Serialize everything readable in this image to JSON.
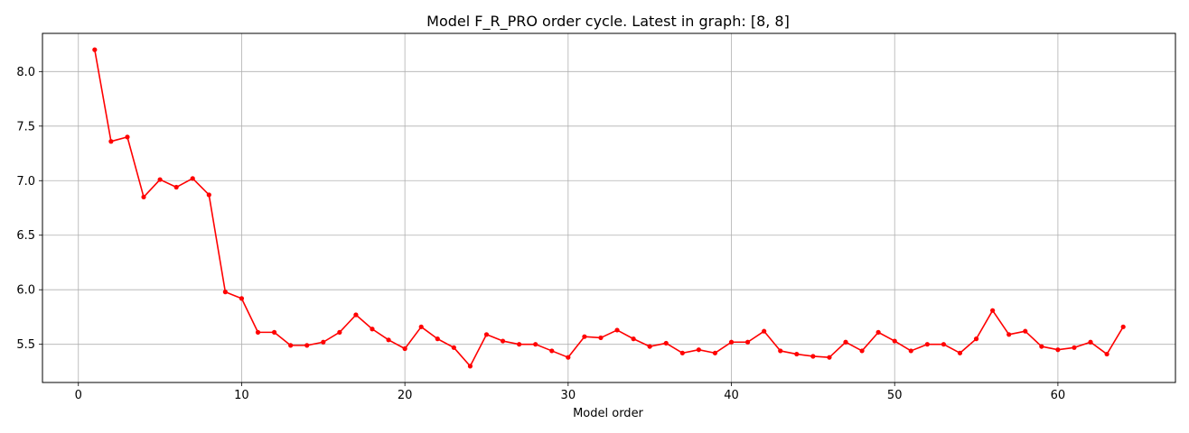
{
  "chart_data": {
    "type": "line",
    "title": "Model F_R_PRO order cycle. Latest in graph: [8, 8]",
    "xlabel": "Model order",
    "ylabel": "",
    "xlim": [
      -2.2,
      67.2
    ],
    "ylim": [
      5.15,
      8.35
    ],
    "xticks": [
      0,
      10,
      20,
      30,
      40,
      50,
      60
    ],
    "yticks": [
      5.5,
      6.0,
      6.5,
      7.0,
      7.5,
      8.0
    ],
    "ytick_labels": [
      "5.5",
      "6.0",
      "6.5",
      "7.0",
      "7.5",
      "8.0"
    ],
    "grid": true,
    "series": [
      {
        "color": "#ff0000",
        "marker": "circle",
        "x": [
          1,
          2,
          3,
          4,
          5,
          6,
          7,
          8,
          9,
          10,
          11,
          12,
          13,
          14,
          15,
          16,
          17,
          18,
          19,
          20,
          21,
          22,
          23,
          24,
          25,
          26,
          27,
          28,
          29,
          30,
          31,
          32,
          33,
          34,
          35,
          36,
          37,
          38,
          39,
          40,
          41,
          42,
          43,
          44,
          45,
          46,
          47,
          48,
          49,
          50,
          51,
          52,
          53,
          54,
          55,
          56,
          57,
          58,
          59,
          60,
          61,
          62,
          63,
          64
        ],
        "y": [
          8.2,
          7.36,
          7.4,
          6.85,
          7.01,
          6.94,
          7.02,
          6.87,
          5.98,
          5.92,
          5.61,
          5.61,
          5.49,
          5.49,
          5.52,
          5.61,
          5.77,
          5.64,
          5.54,
          5.46,
          5.66,
          5.55,
          5.47,
          5.3,
          5.59,
          5.53,
          5.5,
          5.5,
          5.44,
          5.38,
          5.57,
          5.56,
          5.63,
          5.55,
          5.48,
          5.51,
          5.42,
          5.45,
          5.42,
          5.52,
          5.52,
          5.62,
          5.44,
          5.41,
          5.39,
          5.38,
          5.52,
          5.44,
          5.61,
          5.53,
          5.44,
          5.5,
          5.5,
          5.42,
          5.55,
          5.81,
          5.59,
          5.62,
          5.48,
          5.45,
          5.47,
          5.52,
          5.41,
          5.66
        ]
      }
    ]
  }
}
